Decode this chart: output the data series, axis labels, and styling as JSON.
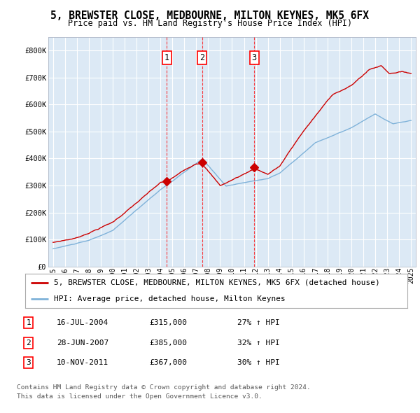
{
  "title1": "5, BREWSTER CLOSE, MEDBOURNE, MILTON KEYNES, MK5 6FX",
  "title2": "Price paid vs. HM Land Registry's House Price Index (HPI)",
  "background_color": "#ffffff",
  "plot_bg_color": "#dce9f5",
  "red_line_label": "5, BREWSTER CLOSE, MEDBOURNE, MILTON KEYNES, MK5 6FX (detached house)",
  "blue_line_label": "HPI: Average price, detached house, Milton Keynes",
  "transactions": [
    {
      "num": 1,
      "date": "16-JUL-2004",
      "price": 315000,
      "year": 2004.54,
      "pct": "27%",
      "dir": "↑"
    },
    {
      "num": 2,
      "date": "28-JUN-2007",
      "price": 385000,
      "year": 2007.49,
      "pct": "32%",
      "dir": "↑"
    },
    {
      "num": 3,
      "date": "10-NOV-2011",
      "price": 367000,
      "year": 2011.86,
      "pct": "30%",
      "dir": "↑"
    }
  ],
  "footer1": "Contains HM Land Registry data © Crown copyright and database right 2024.",
  "footer2": "This data is licensed under the Open Government Licence v3.0.",
  "ylim": [
    0,
    850000
  ],
  "yticks": [
    0,
    100000,
    200000,
    300000,
    400000,
    500000,
    600000,
    700000,
    800000
  ],
  "ytick_labels": [
    "£0",
    "£100K",
    "£200K",
    "£300K",
    "£400K",
    "£500K",
    "£600K",
    "£700K",
    "£800K"
  ],
  "red_color": "#cc0000",
  "blue_color": "#7fb2d9",
  "grid_color": "#ffffff",
  "spine_color": "#b0b8c8"
}
